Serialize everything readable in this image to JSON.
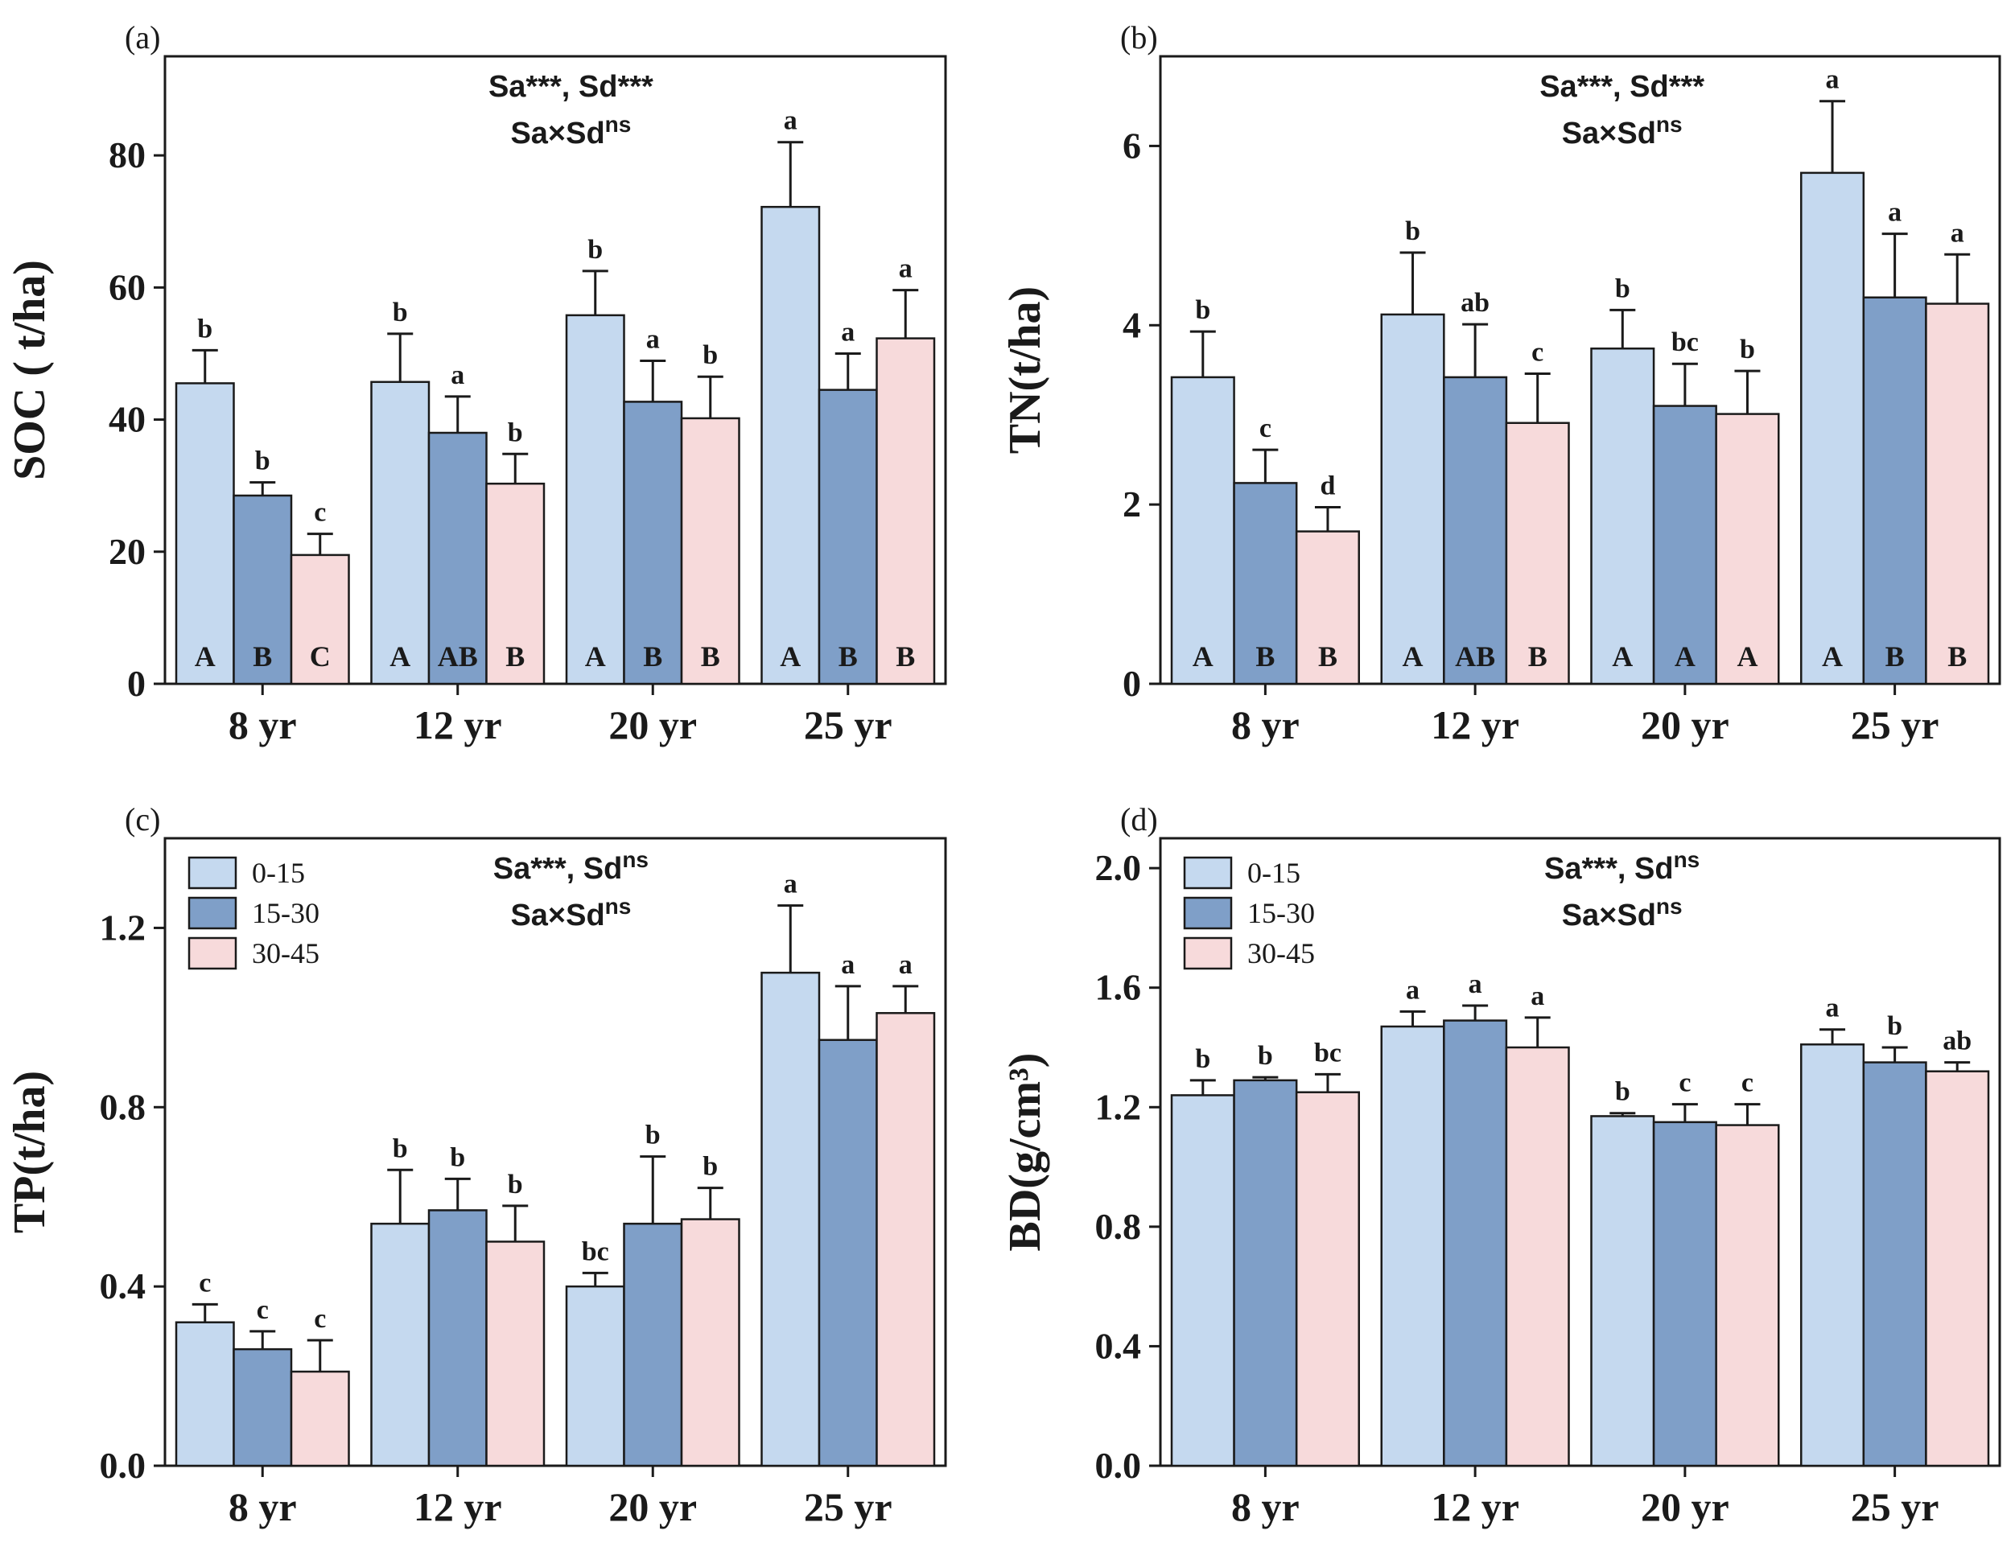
{
  "colors": {
    "series_0": "#c5d9ef",
    "series_1": "#7f9fc8",
    "series_2": "#f7dadb",
    "edge": "#1a1a1a",
    "background": "#ffffff"
  },
  "legend_items": [
    "0-15",
    "15-30",
    "30-45"
  ],
  "chart_data": [
    {
      "type": "bar",
      "panel_label": "(a)",
      "ylabel": "SOC ( t/ha)",
      "xlabel": "",
      "categories": [
        "8 yr",
        "12 yr",
        "20 yr",
        "25 yr"
      ],
      "ylim": [
        0,
        95
      ],
      "yticks": [
        0,
        20,
        40,
        60,
        80
      ],
      "ytick_labels": [
        "0",
        "20",
        "40",
        "60",
        "80"
      ],
      "series": [
        {
          "name": "0-15",
          "values": [
            45.5,
            45.7,
            55.8,
            72.2
          ],
          "errors": [
            5.0,
            7.3,
            6.7,
            9.8
          ]
        },
        {
          "name": "15-30",
          "values": [
            28.5,
            38.0,
            42.7,
            44.5
          ],
          "errors": [
            2.0,
            5.5,
            6.2,
            5.5
          ]
        },
        {
          "name": "30-45",
          "values": [
            19.5,
            30.3,
            40.2,
            52.3
          ],
          "errors": [
            3.2,
            4.5,
            6.3,
            7.3
          ]
        }
      ],
      "letters_top": [
        [
          "b",
          "b",
          "c"
        ],
        [
          "b",
          "a",
          "b"
        ],
        [
          "b",
          "a",
          "b"
        ],
        [
          "a",
          "a",
          "a"
        ]
      ],
      "letters_bottom": [
        [
          "A",
          "B",
          "C"
        ],
        [
          "A",
          "AB",
          "B"
        ],
        [
          "A",
          "B",
          "B"
        ],
        [
          "A",
          "B",
          "B"
        ]
      ],
      "stats": [
        {
          "line": [
            {
              "t": "Sa***, Sd***"
            }
          ]
        },
        {
          "line": [
            {
              "t": "Sa×Sd"
            },
            {
              "t": "ns",
              "sup": true
            }
          ]
        }
      ],
      "legend": false
    },
    {
      "type": "bar",
      "panel_label": "(b)",
      "ylabel": "TN(t/ha)",
      "xlabel": "",
      "categories": [
        "8 yr",
        "12 yr",
        "20 yr",
        "25 yr"
      ],
      "ylim": [
        0,
        7.0
      ],
      "yticks": [
        0,
        2,
        4,
        6
      ],
      "ytick_labels": [
        "0",
        "2",
        "4",
        "6"
      ],
      "series": [
        {
          "name": "0-15",
          "values": [
            3.42,
            4.12,
            3.74,
            5.7
          ],
          "errors": [
            0.51,
            0.69,
            0.43,
            0.8
          ]
        },
        {
          "name": "15-30",
          "values": [
            2.24,
            3.42,
            3.1,
            4.31
          ],
          "errors": [
            0.37,
            0.59,
            0.47,
            0.71
          ]
        },
        {
          "name": "30-45",
          "values": [
            1.7,
            2.91,
            3.01,
            4.24
          ],
          "errors": [
            0.27,
            0.55,
            0.48,
            0.55
          ]
        }
      ],
      "letters_top": [
        [
          "b",
          "c",
          "d"
        ],
        [
          "b",
          "ab",
          "c"
        ],
        [
          "b",
          "bc",
          "b"
        ],
        [
          "a",
          "a",
          "a"
        ]
      ],
      "letters_bottom": [
        [
          "A",
          "B",
          "B"
        ],
        [
          "A",
          "AB",
          "B"
        ],
        [
          "A",
          "A",
          "A"
        ],
        [
          "A",
          "B",
          "B"
        ]
      ],
      "stats": [
        {
          "line": [
            {
              "t": "Sa***, Sd***"
            }
          ]
        },
        {
          "line": [
            {
              "t": "Sa×Sd"
            },
            {
              "t": "ns",
              "sup": true
            }
          ]
        }
      ],
      "legend": false
    },
    {
      "type": "bar",
      "panel_label": "(c)",
      "ylabel": "TP(t/ha)",
      "xlabel": "",
      "categories": [
        "8 yr",
        "12 yr",
        "20 yr",
        "25 yr"
      ],
      "ylim": [
        0,
        1.4
      ],
      "yticks": [
        0.0,
        0.4,
        0.8,
        1.2
      ],
      "ytick_labels": [
        "0.0",
        "0.4",
        "0.8",
        "1.2"
      ],
      "series": [
        {
          "name": "0-15",
          "values": [
            0.32,
            0.54,
            0.4,
            1.1
          ],
          "errors": [
            0.04,
            0.12,
            0.03,
            0.15
          ]
        },
        {
          "name": "15-30",
          "values": [
            0.26,
            0.57,
            0.54,
            0.95
          ],
          "errors": [
            0.04,
            0.07,
            0.15,
            0.12
          ]
        },
        {
          "name": "30-45",
          "values": [
            0.21,
            0.5,
            0.55,
            1.01
          ],
          "errors": [
            0.07,
            0.08,
            0.07,
            0.06
          ]
        }
      ],
      "letters_top": [
        [
          "c",
          "c",
          "c"
        ],
        [
          "b",
          "b",
          "b"
        ],
        [
          "bc",
          "b",
          "b"
        ],
        [
          "a",
          "a",
          "a"
        ]
      ],
      "letters_bottom": null,
      "stats": [
        {
          "line": [
            {
              "t": "Sa***, Sd"
            },
            {
              "t": "ns",
              "sup": true
            }
          ]
        },
        {
          "line": [
            {
              "t": "Sa×Sd"
            },
            {
              "t": "ns",
              "sup": true
            }
          ]
        }
      ],
      "legend": true
    },
    {
      "type": "bar",
      "panel_label": "(d)",
      "ylabel": "BD(g/cm³)",
      "xlabel": "",
      "categories": [
        "8 yr",
        "12 yr",
        "20 yr",
        "25 yr"
      ],
      "ylim": [
        0,
        2.1
      ],
      "yticks": [
        0.0,
        0.4,
        0.8,
        1.2,
        1.6,
        2.0
      ],
      "ytick_labels": [
        "0.0",
        "0.4",
        "0.8",
        "1.2",
        "1.6",
        "2.0"
      ],
      "series": [
        {
          "name": "0-15",
          "values": [
            1.24,
            1.47,
            1.17,
            1.41
          ],
          "errors": [
            0.05,
            0.05,
            0.01,
            0.05
          ]
        },
        {
          "name": "15-30",
          "values": [
            1.29,
            1.49,
            1.15,
            1.35
          ],
          "errors": [
            0.01,
            0.05,
            0.06,
            0.05
          ]
        },
        {
          "name": "30-45",
          "values": [
            1.25,
            1.4,
            1.14,
            1.32
          ],
          "errors": [
            0.06,
            0.1,
            0.07,
            0.03
          ]
        }
      ],
      "letters_top": [
        [
          "b",
          "b",
          "bc"
        ],
        [
          "a",
          "a",
          "a"
        ],
        [
          "b",
          "c",
          "c"
        ],
        [
          "a",
          "b",
          "ab"
        ]
      ],
      "letters_bottom": null,
      "stats": [
        {
          "line": [
            {
              "t": "Sa***, Sd"
            },
            {
              "t": "ns",
              "sup": true
            }
          ]
        },
        {
          "line": [
            {
              "t": "Sa×Sd"
            },
            {
              "t": "ns",
              "sup": true
            }
          ]
        }
      ],
      "legend": true
    }
  ]
}
